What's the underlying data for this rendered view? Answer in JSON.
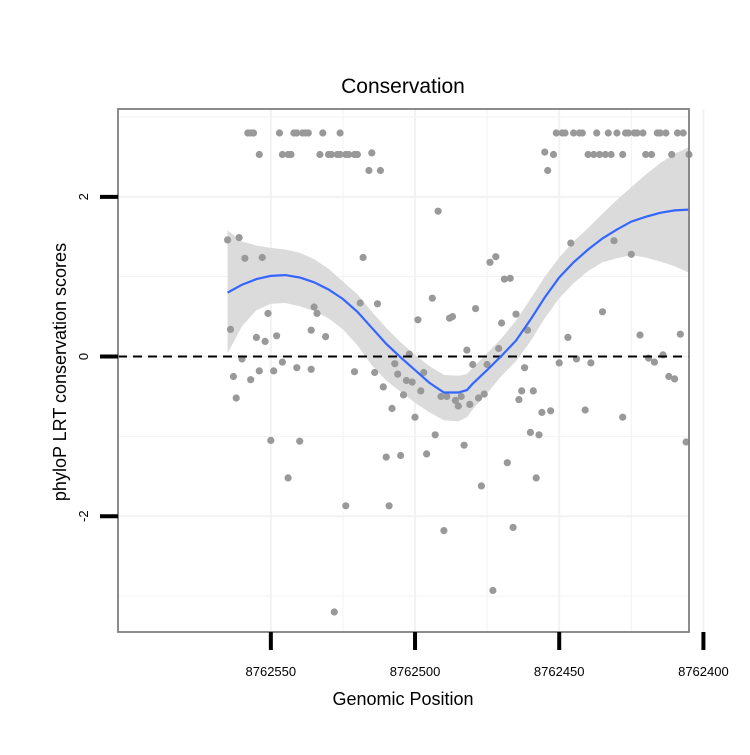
{
  "chart_data": {
    "type": "scatter",
    "title": "Conservation",
    "xlabel": "Genomic Position",
    "ylabel": "phyloP LRT conservation scores",
    "x_reversed": true,
    "xlim": [
      8762405,
      8762603
    ],
    "ylim": [
      -3.45,
      3.1
    ],
    "xticks": [
      {
        "value": 8762550,
        "label": "8762550"
      },
      {
        "value": 8762500,
        "label": "8762500"
      },
      {
        "value": 8762450,
        "label": "8762450"
      },
      {
        "value": 8762400,
        "label": "8762400"
      }
    ],
    "yticks": [
      {
        "value": -2,
        "label": "-2"
      },
      {
        "value": 0,
        "label": "0"
      },
      {
        "value": 2,
        "label": "2"
      }
    ],
    "reference_line": {
      "y": 0,
      "style": "dashed",
      "color": "#000000"
    },
    "grid": true,
    "colors": {
      "points": "#999999",
      "smooth": "#3366ff",
      "band": "#d9d9d9",
      "grid": "#f2f2f2",
      "border": "#7f7f7f"
    },
    "points": [
      {
        "x": 8762565,
        "y": 1.46
      },
      {
        "x": 8762564,
        "y": 0.34
      },
      {
        "x": 8762563,
        "y": -0.25
      },
      {
        "x": 8762562,
        "y": -0.52
      },
      {
        "x": 8762561,
        "y": 1.49
      },
      {
        "x": 8762560,
        "y": -0.03
      },
      {
        "x": 8762559,
        "y": 1.23
      },
      {
        "x": 8762558,
        "y": 2.8
      },
      {
        "x": 8762557,
        "y": -0.29
      },
      {
        "x": 8762557,
        "y": 2.8
      },
      {
        "x": 8762556,
        "y": 2.8
      },
      {
        "x": 8762555,
        "y": 0.24
      },
      {
        "x": 8762554,
        "y": -0.18
      },
      {
        "x": 8762554,
        "y": 2.53
      },
      {
        "x": 8762553,
        "y": 1.24
      },
      {
        "x": 8762552,
        "y": 0.19
      },
      {
        "x": 8762551,
        "y": 0.54
      },
      {
        "x": 8762550,
        "y": -1.05
      },
      {
        "x": 8762549,
        "y": -0.18
      },
      {
        "x": 8762548,
        "y": 0.26
      },
      {
        "x": 8762547,
        "y": 2.8
      },
      {
        "x": 8762546,
        "y": -0.07
      },
      {
        "x": 8762546,
        "y": 2.53
      },
      {
        "x": 8762544,
        "y": 2.53
      },
      {
        "x": 8762544,
        "y": -1.52
      },
      {
        "x": 8762543,
        "y": 2.53
      },
      {
        "x": 8762542,
        "y": 2.8
      },
      {
        "x": 8762541,
        "y": -0.14
      },
      {
        "x": 8762541,
        "y": 2.8
      },
      {
        "x": 8762540,
        "y": -1.06
      },
      {
        "x": 8762539,
        "y": 2.8
      },
      {
        "x": 8762538,
        "y": 2.8
      },
      {
        "x": 8762537,
        "y": 2.8
      },
      {
        "x": 8762536,
        "y": -0.16
      },
      {
        "x": 8762536,
        "y": 0.33
      },
      {
        "x": 8762535,
        "y": 0.62
      },
      {
        "x": 8762534,
        "y": 0.54
      },
      {
        "x": 8762533,
        "y": 2.53
      },
      {
        "x": 8762532,
        "y": 2.8
      },
      {
        "x": 8762531,
        "y": 0.25
      },
      {
        "x": 8762530,
        "y": 2.53
      },
      {
        "x": 8762529,
        "y": 2.53
      },
      {
        "x": 8762528,
        "y": -3.2
      },
      {
        "x": 8762527,
        "y": 2.53
      },
      {
        "x": 8762526,
        "y": 2.8
      },
      {
        "x": 8762526,
        "y": 2.53
      },
      {
        "x": 8762524,
        "y": -1.87
      },
      {
        "x": 8762524,
        "y": 2.53
      },
      {
        "x": 8762523,
        "y": 2.53
      },
      {
        "x": 8762521,
        "y": -0.19
      },
      {
        "x": 8762521,
        "y": 2.53
      },
      {
        "x": 8762520,
        "y": 2.53
      },
      {
        "x": 8762519,
        "y": 0.67
      },
      {
        "x": 8762518,
        "y": 1.24
      },
      {
        "x": 8762516,
        "y": 2.33
      },
      {
        "x": 8762515,
        "y": 2.55
      },
      {
        "x": 8762514,
        "y": -0.2
      },
      {
        "x": 8762513,
        "y": 0.66
      },
      {
        "x": 8762512,
        "y": 2.33
      },
      {
        "x": 8762511,
        "y": -0.38
      },
      {
        "x": 8762510,
        "y": -1.26
      },
      {
        "x": 8762509,
        "y": -1.87
      },
      {
        "x": 8762508,
        "y": -0.65
      },
      {
        "x": 8762507,
        "y": -0.09
      },
      {
        "x": 8762506,
        "y": -0.22
      },
      {
        "x": 8762505,
        "y": -1.24
      },
      {
        "x": 8762504,
        "y": -0.48
      },
      {
        "x": 8762503,
        "y": -0.3
      },
      {
        "x": 8762502,
        "y": 0.03
      },
      {
        "x": 8762501,
        "y": -0.32
      },
      {
        "x": 8762500,
        "y": -0.76
      },
      {
        "x": 8762499,
        "y": 0.46
      },
      {
        "x": 8762498,
        "y": -0.43
      },
      {
        "x": 8762497,
        "y": -0.2
      },
      {
        "x": 8762496,
        "y": -1.22
      },
      {
        "x": 8762494,
        "y": 0.73
      },
      {
        "x": 8762493,
        "y": -0.98
      },
      {
        "x": 8762492,
        "y": 1.82
      },
      {
        "x": 8762491,
        "y": -0.5
      },
      {
        "x": 8762490,
        "y": -2.18
      },
      {
        "x": 8762489,
        "y": -0.5
      },
      {
        "x": 8762488,
        "y": 0.48
      },
      {
        "x": 8762487,
        "y": 0.5
      },
      {
        "x": 8762486,
        "y": -0.55
      },
      {
        "x": 8762485,
        "y": -0.62
      },
      {
        "x": 8762484,
        "y": -0.5
      },
      {
        "x": 8762483,
        "y": -1.11
      },
      {
        "x": 8762482,
        "y": 0.08
      },
      {
        "x": 8762481,
        "y": -0.6
      },
      {
        "x": 8762480,
        "y": -0.1
      },
      {
        "x": 8762479,
        "y": 0.6
      },
      {
        "x": 8762478,
        "y": -0.52
      },
      {
        "x": 8762477,
        "y": -1.62
      },
      {
        "x": 8762476,
        "y": -0.47
      },
      {
        "x": 8762475,
        "y": -0.1
      },
      {
        "x": 8762474,
        "y": 1.18
      },
      {
        "x": 8762473,
        "y": -2.93
      },
      {
        "x": 8762472,
        "y": 1.25
      },
      {
        "x": 8762471,
        "y": 0.1
      },
      {
        "x": 8762470,
        "y": 0.42
      },
      {
        "x": 8762469,
        "y": 0.97
      },
      {
        "x": 8762468,
        "y": -1.33
      },
      {
        "x": 8762467,
        "y": 0.98
      },
      {
        "x": 8762466,
        "y": -2.14
      },
      {
        "x": 8762465,
        "y": 0.53
      },
      {
        "x": 8762464,
        "y": -0.54
      },
      {
        "x": 8762463,
        "y": -0.43
      },
      {
        "x": 8762462,
        "y": -0.14
      },
      {
        "x": 8762461,
        "y": 0.33
      },
      {
        "x": 8762460,
        "y": -0.95
      },
      {
        "x": 8762459,
        "y": -0.43
      },
      {
        "x": 8762458,
        "y": -1.52
      },
      {
        "x": 8762457,
        "y": -0.98
      },
      {
        "x": 8762456,
        "y": -0.7
      },
      {
        "x": 8762455,
        "y": 2.56
      },
      {
        "x": 8762454,
        "y": 2.33
      },
      {
        "x": 8762453,
        "y": -0.68
      },
      {
        "x": 8762452,
        "y": 2.53
      },
      {
        "x": 8762451,
        "y": 2.8
      },
      {
        "x": 8762450,
        "y": -0.08
      },
      {
        "x": 8762449,
        "y": 2.8
      },
      {
        "x": 8762448,
        "y": 2.8
      },
      {
        "x": 8762447,
        "y": 0.24
      },
      {
        "x": 8762446,
        "y": 1.42
      },
      {
        "x": 8762445,
        "y": 2.8
      },
      {
        "x": 8762444,
        "y": -0.03
      },
      {
        "x": 8762443,
        "y": 2.8
      },
      {
        "x": 8762442,
        "y": 2.8
      },
      {
        "x": 8762441,
        "y": -0.67
      },
      {
        "x": 8762440,
        "y": 2.53
      },
      {
        "x": 8762439,
        "y": -0.08
      },
      {
        "x": 8762438,
        "y": 2.53
      },
      {
        "x": 8762437,
        "y": 2.8
      },
      {
        "x": 8762436,
        "y": 2.53
      },
      {
        "x": 8762435,
        "y": 0.56
      },
      {
        "x": 8762434,
        "y": 2.53
      },
      {
        "x": 8762433,
        "y": 2.8
      },
      {
        "x": 8762432,
        "y": 2.53
      },
      {
        "x": 8762431,
        "y": 1.45
      },
      {
        "x": 8762430,
        "y": 2.8
      },
      {
        "x": 8762428,
        "y": 2.53
      },
      {
        "x": 8762428,
        "y": -0.76
      },
      {
        "x": 8762427,
        "y": 2.8
      },
      {
        "x": 8762426,
        "y": 2.8
      },
      {
        "x": 8762425,
        "y": 1.28
      },
      {
        "x": 8762424,
        "y": 2.8
      },
      {
        "x": 8762423,
        "y": 2.8
      },
      {
        "x": 8762422,
        "y": 0.27
      },
      {
        "x": 8762421,
        "y": 2.8
      },
      {
        "x": 8762420,
        "y": 2.53
      },
      {
        "x": 8762419,
        "y": -0.02
      },
      {
        "x": 8762418,
        "y": 2.53
      },
      {
        "x": 8762417,
        "y": -0.07
      },
      {
        "x": 8762416,
        "y": 2.8
      },
      {
        "x": 8762415,
        "y": 2.8
      },
      {
        "x": 8762414,
        "y": 0.02
      },
      {
        "x": 8762413,
        "y": 2.8
      },
      {
        "x": 8762412,
        "y": -0.25
      },
      {
        "x": 8762411,
        "y": 2.53
      },
      {
        "x": 8762410,
        "y": -0.28
      },
      {
        "x": 8762409,
        "y": 2.8
      },
      {
        "x": 8762408,
        "y": 0.28
      },
      {
        "x": 8762407,
        "y": 2.8
      },
      {
        "x": 8762406,
        "y": -1.07
      },
      {
        "x": 8762405,
        "y": 2.53
      }
    ],
    "smooth": {
      "x": [
        8762565,
        8762560,
        8762555,
        8762550,
        8762545,
        8762540,
        8762535,
        8762530,
        8762525,
        8762520,
        8762515,
        8762510,
        8762505,
        8762500,
        8762495,
        8762490,
        8762485,
        8762482,
        8762480,
        8762475,
        8762470,
        8762465,
        8762460,
        8762455,
        8762450,
        8762445,
        8762440,
        8762435,
        8762430,
        8762425,
        8762420,
        8762415,
        8762410,
        8762405
      ],
      "y": [
        0.8,
        0.9,
        0.97,
        1.01,
        1.02,
        0.99,
        0.93,
        0.84,
        0.72,
        0.56,
        0.36,
        0.16,
        -0.01,
        -0.17,
        -0.33,
        -0.45,
        -0.45,
        -0.42,
        -0.34,
        -0.17,
        0.01,
        0.2,
        0.46,
        0.74,
        0.99,
        1.18,
        1.34,
        1.48,
        1.59,
        1.69,
        1.75,
        1.8,
        1.83,
        1.84
      ],
      "upper": [
        1.58,
        1.44,
        1.39,
        1.36,
        1.34,
        1.3,
        1.22,
        1.1,
        0.94,
        0.78,
        0.56,
        0.36,
        0.18,
        0.02,
        -0.12,
        -0.23,
        -0.24,
        -0.22,
        -0.14,
        0.04,
        0.23,
        0.45,
        0.72,
        1.0,
        1.24,
        1.44,
        1.61,
        1.79,
        1.96,
        2.12,
        2.28,
        2.42,
        2.54,
        2.62
      ],
      "lower": [
        0.04,
        0.38,
        0.58,
        0.66,
        0.67,
        0.63,
        0.57,
        0.48,
        0.34,
        0.14,
        -0.11,
        -0.3,
        -0.44,
        -0.58,
        -0.7,
        -0.8,
        -0.81,
        -0.76,
        -0.66,
        -0.46,
        -0.24,
        -0.06,
        0.19,
        0.48,
        0.73,
        0.92,
        1.07,
        1.18,
        1.23,
        1.27,
        1.24,
        1.19,
        1.13,
        1.05
      ]
    }
  }
}
